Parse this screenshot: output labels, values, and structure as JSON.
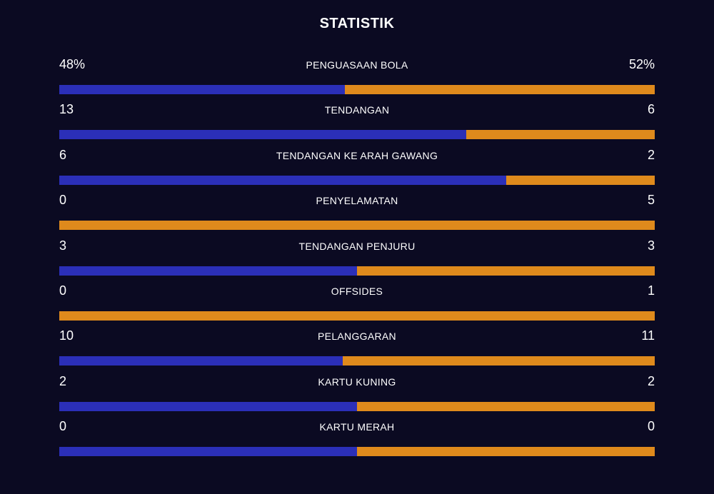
{
  "title": "STATISTIK",
  "colors": {
    "background": "#0b0a22",
    "home": "#2b2fb8",
    "away": "#df8a1c"
  },
  "stats": [
    {
      "label": "PENGUASAAN BOLA",
      "home": "48%",
      "away": "52%",
      "home_share": 0.48
    },
    {
      "label": "TENDANGAN",
      "home": "13",
      "away": "6",
      "home_share": 0.684
    },
    {
      "label": "TENDANGAN KE ARAH GAWANG",
      "home": "6",
      "away": "2",
      "home_share": 0.75
    },
    {
      "label": "PENYELAMATAN",
      "home": "0",
      "away": "5",
      "home_share": 0
    },
    {
      "label": "TENDANGAN PENJURU",
      "home": "3",
      "away": "3",
      "home_share": 0.5
    },
    {
      "label": "OFFSIDES",
      "home": "0",
      "away": "1",
      "home_share": 0
    },
    {
      "label": "PELANGGARAN",
      "home": "10",
      "away": "11",
      "home_share": 0.476
    },
    {
      "label": "KARTU KUNING",
      "home": "2",
      "away": "2",
      "home_share": 0.5
    },
    {
      "label": "KARTU MERAH",
      "home": "0",
      "away": "0",
      "home_share": 0.5
    }
  ]
}
